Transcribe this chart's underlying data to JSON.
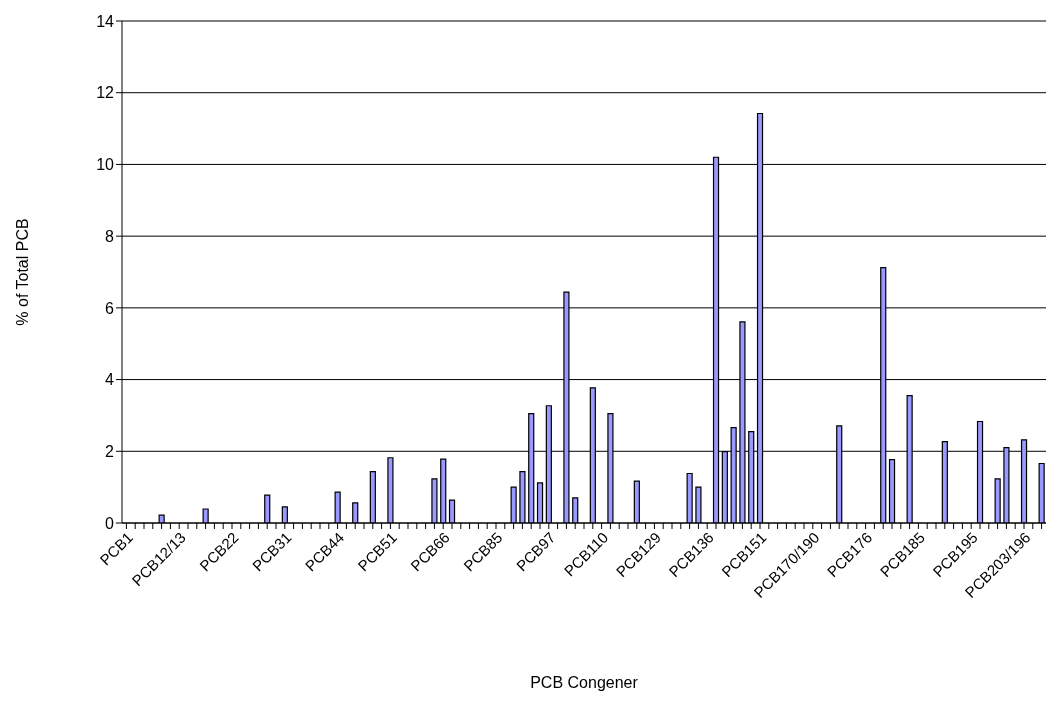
{
  "chart_data": {
    "type": "bar",
    "xlabel": "PCB Congener",
    "ylabel": "% of Total PCB",
    "categories": [
      "PCB1",
      null,
      null,
      null,
      null,
      null,
      "PCB12/13",
      null,
      null,
      null,
      null,
      null,
      "PCB22",
      null,
      null,
      null,
      null,
      null,
      "PCB31",
      null,
      null,
      null,
      null,
      null,
      "PCB44",
      null,
      null,
      null,
      null,
      null,
      "PCB51",
      null,
      null,
      null,
      null,
      null,
      "PCB66",
      null,
      null,
      null,
      null,
      null,
      "PCB85",
      null,
      null,
      null,
      null,
      null,
      "PCB97",
      null,
      null,
      null,
      null,
      null,
      "PCB110",
      null,
      null,
      null,
      null,
      null,
      "PCB129",
      null,
      null,
      null,
      null,
      null,
      "PCB136",
      null,
      null,
      null,
      null,
      null,
      "PCB151",
      null,
      null,
      null,
      null,
      null,
      "PCB170/190",
      null,
      null,
      null,
      null,
      null,
      "PCB176",
      null,
      null,
      null,
      null,
      null,
      "PCB185",
      null,
      null,
      null,
      null,
      null,
      "PCB195",
      null,
      null,
      null,
      null,
      null,
      "PCB203/196",
      null,
      null
    ],
    "values": [
      null,
      null,
      null,
      null,
      0.22,
      null,
      null,
      null,
      null,
      0.39,
      null,
      null,
      null,
      null,
      null,
      null,
      0.78,
      null,
      0.45,
      null,
      null,
      null,
      null,
      null,
      0.86,
      null,
      0.56,
      null,
      1.43,
      null,
      1.82,
      null,
      null,
      null,
      null,
      1.23,
      1.78,
      0.64,
      null,
      null,
      null,
      null,
      null,
      null,
      1.0,
      1.43,
      3.05,
      1.12,
      3.27,
      null,
      6.44,
      0.7,
      null,
      3.77,
      null,
      3.05,
      null,
      null,
      1.17,
      null,
      null,
      null,
      null,
      null,
      1.38,
      1.0,
      null,
      10.2,
      1.99,
      2.66,
      5.61,
      2.55,
      11.42,
      null,
      null,
      null,
      null,
      null,
      null,
      null,
      null,
      2.71,
      null,
      null,
      null,
      null,
      7.12,
      1.77,
      null,
      3.55,
      null,
      null,
      null,
      2.27,
      null,
      null,
      null,
      2.83,
      null,
      1.23,
      2.1,
      null,
      2.32,
      null,
      1.66
    ],
    "color": "#9999ff",
    "ylim": [
      0,
      14
    ],
    "yticks": [
      0,
      2,
      4,
      6,
      8,
      10,
      12,
      14
    ],
    "grid": "y"
  }
}
